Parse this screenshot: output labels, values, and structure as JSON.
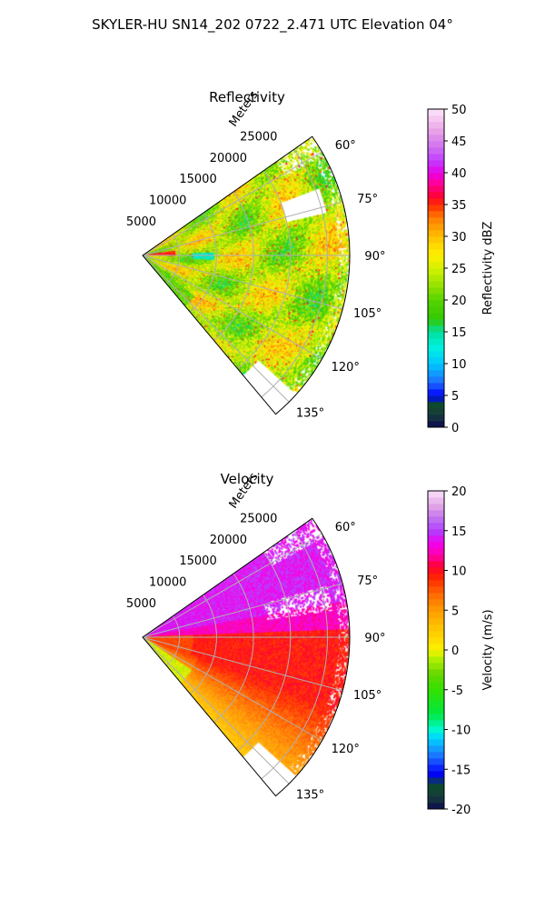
{
  "suptitle": "SKYLER-HU  SN14_202  0722_2.471 UTC Elevation 04°",
  "chart_data": [
    {
      "type": "heatmap",
      "title": "Reflectivity",
      "projection": "polar sector",
      "range_label": "Meters",
      "range_ticks": [
        5000,
        10000,
        15000,
        20000,
        25000
      ],
      "range_max": 28000,
      "azimuth_range": [
        55,
        140
      ],
      "azimuth_ticks": [
        "60°",
        "75°",
        "90°",
        "105°",
        "120°",
        "135°"
      ],
      "colorbar": {
        "label": "Reflectivity dBZ",
        "min": 0,
        "max": 50,
        "ticks": [
          0,
          5,
          10,
          15,
          20,
          25,
          30,
          35,
          40,
          45,
          50
        ]
      },
      "dominant_values": "mostly 20–30 dBZ, scattered 30–38 dBZ cells, small 12–15 dBZ patch near 90° at ~8000 m"
    },
    {
      "type": "heatmap",
      "title": "Velocity",
      "projection": "polar sector",
      "range_label": "Meters",
      "range_ticks": [
        5000,
        10000,
        15000,
        20000,
        25000
      ],
      "range_max": 28000,
      "azimuth_range": [
        55,
        140
      ],
      "azimuth_ticks": [
        "60°",
        "75°",
        "90°",
        "105°",
        "120°",
        "135°"
      ],
      "colorbar": {
        "label": "Velocity (m/s)",
        "min": -20,
        "max": 20,
        "ticks": [
          -20,
          -15,
          -10,
          -5,
          0,
          5,
          10,
          15,
          20
        ]
      },
      "dominant_values": "about 12–16 m/s north of 90°, 8–11 m/s near 90°–110°, 2–6 m/s toward 135°"
    }
  ],
  "colors": {
    "axis": "#000000",
    "grid": "#b0b0b0"
  }
}
